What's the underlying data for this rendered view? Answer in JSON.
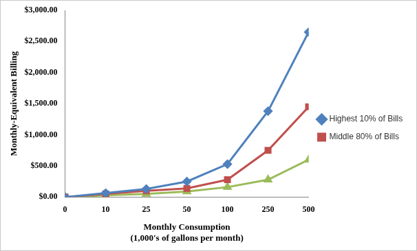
{
  "chart_data": {
    "type": "line",
    "ylabel": "Monthly-Equivalent Billing",
    "xlabel": [
      "Monthly Consumption",
      "(1,000's of gallons per month)"
    ],
    "categories": [
      "0",
      "10",
      "25",
      "50",
      "100",
      "250",
      "500"
    ],
    "series": [
      {
        "name": "Highest 10% of Bills",
        "color": "#4f81bd",
        "marker": "diamond",
        "values": [
          0,
          65,
          130,
          250,
          530,
          1380,
          2650
        ]
      },
      {
        "name": "Middle 80% of Bills",
        "color": "#c0504d",
        "marker": "square",
        "values": [
          0,
          50,
          100,
          140,
          280,
          750,
          1450
        ]
      },
      {
        "color": "#9bbb59",
        "marker": "triangle",
        "values": [
          0,
          30,
          50,
          90,
          160,
          280,
          600
        ]
      }
    ],
    "ylim": [
      0,
      3000
    ],
    "yticks": [
      {
        "value": 0,
        "label": "$0.00"
      },
      {
        "value": 500,
        "label": "$500.00"
      },
      {
        "value": 1000,
        "label": "$1,000.00"
      },
      {
        "value": 1500,
        "label": "$1,500.00"
      },
      {
        "value": 2000,
        "label": "$2,000.00"
      },
      {
        "value": 2500,
        "label": "$2,500.00"
      },
      {
        "value": 3000,
        "label": "$3,000.00"
      }
    ],
    "grid": false,
    "legend": "right"
  }
}
